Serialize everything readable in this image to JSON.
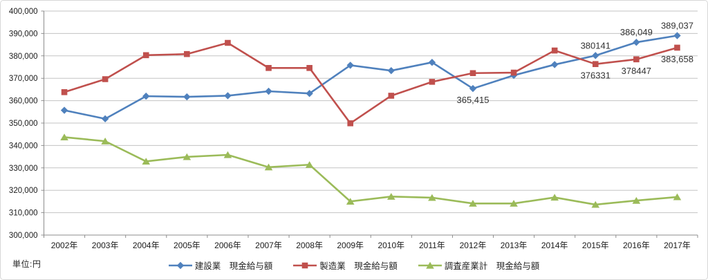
{
  "chart_data": {
    "type": "line",
    "title": "",
    "xlabel": "",
    "ylabel": "",
    "unit_label": "単位:円",
    "categories": [
      "2002年",
      "2003年",
      "2004年",
      "2005年",
      "2006年",
      "2007年",
      "2008年",
      "2009年",
      "2010年",
      "2011年",
      "2012年",
      "2013年",
      "2014年",
      "2015年",
      "2016年",
      "2017年"
    ],
    "series": [
      {
        "name": "建設業　現金給与額",
        "marker": "diamond",
        "color": "#4F81BD",
        "values": [
          355700,
          351900,
          362000,
          361700,
          362200,
          364200,
          363200,
          375800,
          373400,
          377100,
          365415,
          371300,
          376100,
          380141,
          386049,
          389037
        ],
        "annotations": [
          {
            "index": 10,
            "text": "365,415",
            "position": "below"
          },
          {
            "index": 13,
            "text": "380141",
            "position": "above"
          },
          {
            "index": 14,
            "text": "386,049",
            "position": "above"
          },
          {
            "index": 15,
            "text": "389,037",
            "position": "above"
          }
        ]
      },
      {
        "name": "製造業　現金給与額",
        "marker": "square",
        "color": "#C0504D",
        "values": [
          363800,
          369600,
          380300,
          380800,
          385800,
          374600,
          374600,
          349900,
          362200,
          368400,
          372300,
          372500,
          382400,
          376331,
          378447,
          383658
        ],
        "annotations": [
          {
            "index": 13,
            "text": "376331",
            "position": "below"
          },
          {
            "index": 14,
            "text": "378447",
            "position": "below"
          },
          {
            "index": 15,
            "text": "383,658",
            "position": "below"
          }
        ]
      },
      {
        "name": "調査産業計　現金給与額",
        "marker": "triangle",
        "color": "#9BBB59",
        "values": [
          343700,
          341900,
          332900,
          334900,
          335800,
          330300,
          331400,
          315000,
          317200,
          316700,
          314100,
          314100,
          316800,
          313600,
          315400,
          317000
        ],
        "annotations": []
      }
    ],
    "ylim": [
      300000,
      400000
    ],
    "y_tick_step": 10000,
    "y_tick_labels": [
      "400,000",
      "390,000",
      "380,000",
      "370,000",
      "360,000",
      "350,000",
      "340,000",
      "330,000",
      "320,000",
      "310,000",
      "300,000"
    ],
    "grid": true,
    "legend_position": "bottom"
  },
  "styles": {
    "gridline_color": "#C3C3C3",
    "axis_color": "#8C8C8C",
    "label_color": "#1a1a1a",
    "data_label_color": "#333333",
    "background": "#FFFFFF",
    "border_color": "#D7D7D7"
  }
}
